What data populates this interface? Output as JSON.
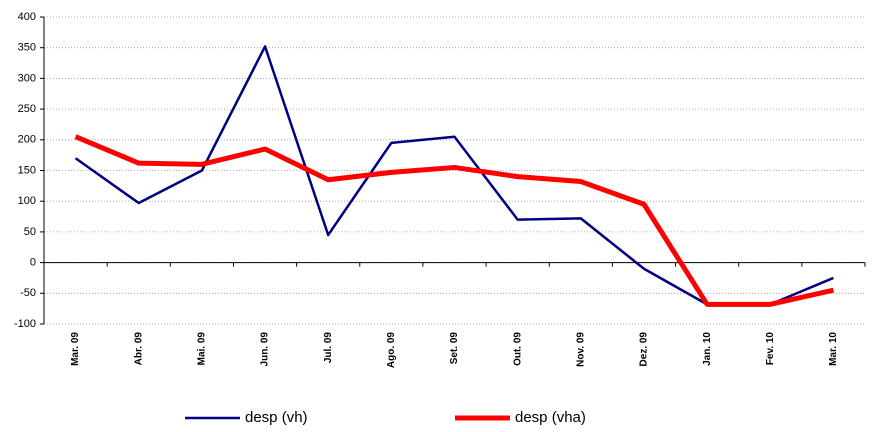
{
  "chart_data": {
    "type": "line",
    "categories": [
      "Mar. 09",
      "Abr. 09",
      "Mai. 09",
      "Jun. 09",
      "Jul. 09",
      "Ago. 09",
      "Set. 09",
      "Out. 09",
      "Nov. 09",
      "Dez. 09",
      "Jan. 10",
      "Fev. 10",
      "Mar. 10"
    ],
    "series": [
      {
        "name": "desp (vh)",
        "color": "#000080",
        "values": [
          170,
          97,
          150,
          352,
          45,
          195,
          205,
          70,
          72,
          -10,
          -68,
          -68,
          -25
        ]
      },
      {
        "name": "desp (vha)",
        "color": "#ff0000",
        "values": [
          205,
          162,
          160,
          185,
          135,
          147,
          155,
          140,
          132,
          95,
          -68,
          -68,
          -45
        ]
      }
    ],
    "ylim": [
      -100,
      400
    ],
    "yticks": [
      -100,
      -50,
      0,
      50,
      100,
      150,
      200,
      250,
      300,
      350,
      400
    ],
    "grid": true
  }
}
